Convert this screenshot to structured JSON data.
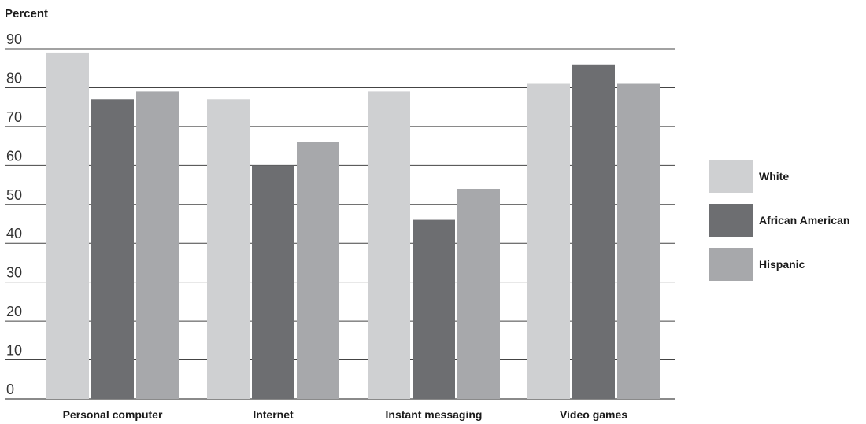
{
  "chart_data": {
    "type": "bar",
    "title": "",
    "ylabel": "Percent",
    "xlabel": "",
    "ylim": [
      0,
      90
    ],
    "yticks": [
      0,
      10,
      20,
      30,
      40,
      50,
      60,
      70,
      80,
      90
    ],
    "grid": true,
    "legend_position": "right",
    "categories": [
      "Personal computer",
      "Internet",
      "Instant messaging",
      "Video games"
    ],
    "series": [
      {
        "name": "White",
        "color": "#cfd0d2",
        "values": [
          89,
          77,
          79,
          81
        ]
      },
      {
        "name": "African American",
        "color": "#6d6e71",
        "values": [
          77,
          60,
          46,
          86
        ]
      },
      {
        "name": "Hispanic",
        "color": "#a7a8ab",
        "values": [
          79,
          66,
          54,
          81
        ]
      }
    ]
  }
}
